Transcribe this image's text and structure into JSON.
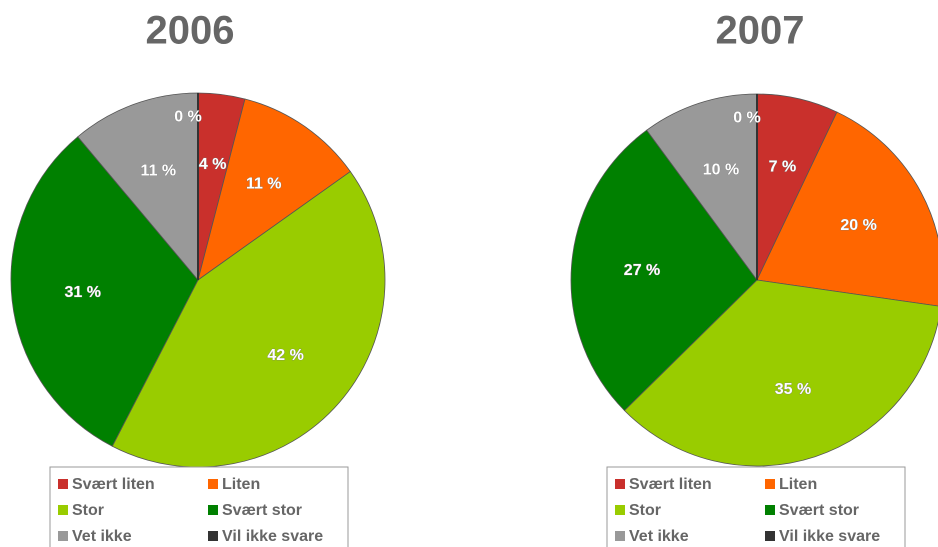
{
  "chart_data": [
    {
      "type": "pie",
      "title": "2006",
      "categories": [
        "Svært liten",
        "Liten",
        "Stor",
        "Svært stor",
        "Vet ikke",
        "Vil ikke svare"
      ],
      "values": [
        4,
        11,
        42,
        31,
        11,
        0
      ],
      "value_labels": [
        "4 %",
        "11 %",
        "42 %",
        "31 %",
        "11 %",
        "0 %"
      ],
      "colors": [
        "#c9302c",
        "#ff6600",
        "#99cc00",
        "#008000",
        "#999999",
        "#333333"
      ],
      "legend": "bottom"
    },
    {
      "type": "pie",
      "title": "2007",
      "categories": [
        "Svært liten",
        "Liten",
        "Stor",
        "Svært stor",
        "Vet ikke",
        "Vil ikke svare"
      ],
      "values": [
        7,
        20,
        35,
        27,
        10,
        0
      ],
      "value_labels": [
        "7 %",
        "20 %",
        "35 %",
        "27 %",
        "10 %",
        "0 %"
      ],
      "colors": [
        "#c9302c",
        "#ff6600",
        "#99cc00",
        "#008000",
        "#999999",
        "#333333"
      ],
      "legend": "bottom"
    }
  ]
}
